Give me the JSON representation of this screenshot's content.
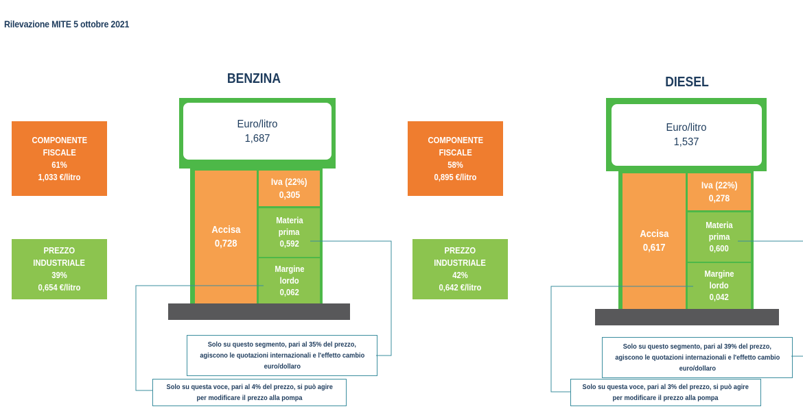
{
  "header": {
    "title": "Rilevazione MITE 5 ottobre 2021"
  },
  "benzina": {
    "title": "BENZINA",
    "fiscal": {
      "line1": "COMPONENTE",
      "line2": "FISCALE",
      "pct": "61%",
      "amount": "1,033 €/litro"
    },
    "industrial": {
      "line1": "PREZZO",
      "line2": "INDUSTRIALE",
      "pct": "39%",
      "amount": "0,654 €/litro"
    },
    "display": {
      "unit": "Euro/litro",
      "price": "1,687"
    },
    "accisa": {
      "label": "Accisa",
      "value": "0,728"
    },
    "iva": {
      "label": "Iva (22%)",
      "value": "0,305"
    },
    "materia": {
      "line1": "Materia",
      "line2": "prima",
      "value": "0,592"
    },
    "margine": {
      "line1": "Margine",
      "line2": "lordo",
      "value": "0,062"
    },
    "note_segment": {
      "line1": "Solo su questo segmento, pari al 35% del prezzo,",
      "line2": "agiscono le quotazioni internazionali e l'effetto cambio",
      "line3": "euro/dollaro"
    },
    "note_voice": {
      "line1": "Solo su questa voce, pari al 4% del prezzo, si può agire",
      "line2": "per modificare il prezzo alla pompa"
    }
  },
  "diesel": {
    "title": "DIESEL",
    "fiscal": {
      "line1": "COMPONENTE",
      "line2": "FISCALE",
      "pct": "58%",
      "amount": "0,895 €/litro"
    },
    "industrial": {
      "line1": "PREZZO",
      "line2": "INDUSTRIALE",
      "pct": "42%",
      "amount": "0,642 €/litro"
    },
    "display": {
      "unit": "Euro/litro",
      "price": "1,537"
    },
    "accisa": {
      "label": "Accisa",
      "value": "0,617"
    },
    "iva": {
      "label": "Iva (22%)",
      "value": "0,278"
    },
    "materia": {
      "line1": "Materia",
      "line2": "prima",
      "value": "0,600"
    },
    "margine": {
      "line1": "Margine",
      "line2": "lordo",
      "value": "0,042"
    },
    "note_segment": {
      "line1": "Solo su questo segmento, pari al 39% del prezzo,",
      "line2": "agiscono le quotazioni internazionali e l'effetto cambio",
      "line3": "euro/dollaro"
    },
    "note_voice": {
      "line1": "Solo su questa voce, pari al 3% del prezzo, si può agire",
      "line2": "per modificare il prezzo alla pompa"
    }
  },
  "colors": {
    "fiscal_orange": "#ef7d2f",
    "segment_orange": "#f6a04d",
    "industrial_green": "#8cc44f",
    "pump_green": "#4db848",
    "base_gray": "#58585a",
    "title_navy": "#1d3b5c",
    "connector_teal": "#3a8d9e"
  }
}
